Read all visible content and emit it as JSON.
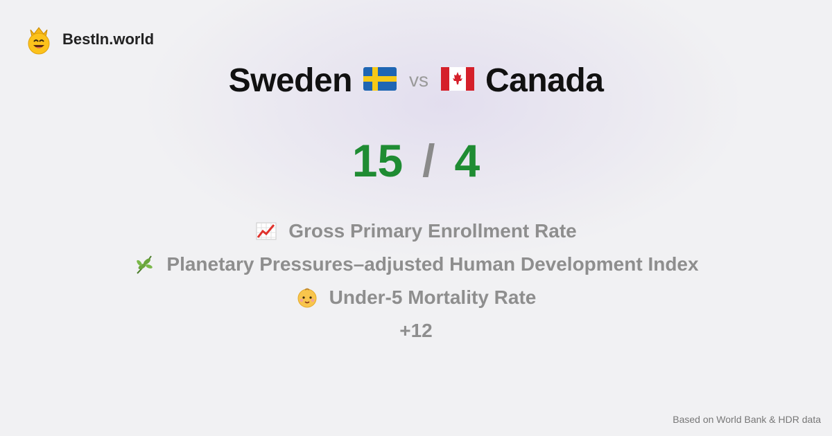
{
  "brand": {
    "name": "BestIn.world",
    "icon": "crown-smiley-icon"
  },
  "comparison": {
    "left": {
      "name": "Sweden",
      "flag": "sweden-flag-icon"
    },
    "vs": "vs",
    "right": {
      "name": "Canada",
      "flag": "canada-flag-icon"
    }
  },
  "score": {
    "left": "15",
    "separator": "/",
    "right": "4"
  },
  "metrics": [
    {
      "icon": "chart-increasing-icon",
      "label": "Gross Primary Enrollment Rate"
    },
    {
      "icon": "herb-icon",
      "label": "Planetary Pressures–adjusted Human Development Index"
    },
    {
      "icon": "baby-icon",
      "label": "Under-5 Mortality Rate"
    }
  ],
  "more": "+12",
  "footer": "Based on World Bank & HDR data",
  "colors": {
    "score": "#1f8c33",
    "muted": "#8e8e8e"
  }
}
